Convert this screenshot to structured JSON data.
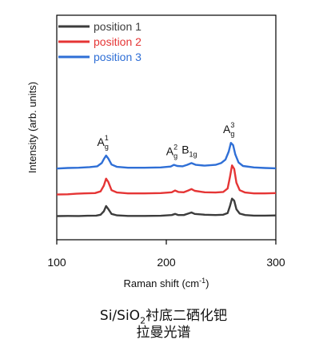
{
  "chart_data": {
    "type": "line",
    "xlabel": "Raman shift (cm",
    "xlabel_sup": "-1",
    "xlabel_tail": ")",
    "ylabel": "Intensity (arb. units)",
    "xlim": [
      100,
      300
    ],
    "xticks": [
      100,
      200,
      300
    ],
    "xticklabels": [
      "100",
      "200",
      "300"
    ],
    "yticks_shown": false,
    "grid": false,
    "legend_placement": "top-left",
    "series": [
      {
        "name": "position 1",
        "color": "#3c3c3c",
        "offset": 0,
        "points": [
          [
            100,
            0.15
          ],
          [
            110,
            0.2
          ],
          [
            120,
            0.18
          ],
          [
            128,
            0.25
          ],
          [
            136,
            0.3
          ],
          [
            140,
            0.6
          ],
          [
            143,
            1.8
          ],
          [
            145,
            3.6
          ],
          [
            147,
            2.6
          ],
          [
            150,
            0.9
          ],
          [
            155,
            0.4
          ],
          [
            165,
            0.2
          ],
          [
            180,
            0.2
          ],
          [
            195,
            0.25
          ],
          [
            205,
            0.5
          ],
          [
            208,
            0.9
          ],
          [
            211,
            0.5
          ],
          [
            216,
            0.5
          ],
          [
            220,
            1.0
          ],
          [
            223,
            1.4
          ],
          [
            226,
            0.9
          ],
          [
            235,
            0.6
          ],
          [
            245,
            0.5
          ],
          [
            252,
            0.6
          ],
          [
            256,
            1.2
          ],
          [
            258,
            3.5
          ],
          [
            260,
            6.2
          ],
          [
            262,
            5.5
          ],
          [
            264,
            2.5
          ],
          [
            267,
            1.0
          ],
          [
            272,
            0.5
          ],
          [
            280,
            0.3
          ],
          [
            290,
            0.3
          ],
          [
            300,
            0.35
          ]
        ]
      },
      {
        "name": "position 2",
        "color": "#e53535",
        "offset": 7.5,
        "points": [
          [
            100,
            0.1
          ],
          [
            110,
            0.2
          ],
          [
            118,
            0.4
          ],
          [
            125,
            0.5
          ],
          [
            135,
            0.6
          ],
          [
            140,
            1.2
          ],
          [
            143,
            3.2
          ],
          [
            145,
            5.6
          ],
          [
            147,
            4.5
          ],
          [
            150,
            1.6
          ],
          [
            155,
            0.8
          ],
          [
            165,
            0.5
          ],
          [
            180,
            0.5
          ],
          [
            195,
            0.6
          ],
          [
            205,
            0.9
          ],
          [
            208,
            1.5
          ],
          [
            211,
            1.0
          ],
          [
            216,
            0.9
          ],
          [
            220,
            1.5
          ],
          [
            223,
            2.0
          ],
          [
            226,
            1.4
          ],
          [
            235,
            0.9
          ],
          [
            245,
            0.8
          ],
          [
            252,
            1.0
          ],
          [
            256,
            2.2
          ],
          [
            258,
            6.0
          ],
          [
            260,
            10.2
          ],
          [
            262,
            9.0
          ],
          [
            264,
            4.2
          ],
          [
            267,
            1.6
          ],
          [
            272,
            0.8
          ],
          [
            280,
            0.5
          ],
          [
            290,
            0.5
          ],
          [
            300,
            0.6
          ]
        ]
      },
      {
        "name": "position 3",
        "color": "#2f6fd6",
        "offset": 16.5,
        "points": [
          [
            100,
            0.1
          ],
          [
            110,
            0.3
          ],
          [
            120,
            0.4
          ],
          [
            130,
            0.6
          ],
          [
            137,
            0.9
          ],
          [
            141,
            2.0
          ],
          [
            143,
            3.4
          ],
          [
            145,
            4.6
          ],
          [
            147,
            3.6
          ],
          [
            150,
            1.5
          ],
          [
            155,
            0.7
          ],
          [
            165,
            0.4
          ],
          [
            180,
            0.4
          ],
          [
            195,
            0.5
          ],
          [
            204,
            0.8
          ],
          [
            207,
            1.4
          ],
          [
            210,
            1.0
          ],
          [
            215,
            0.9
          ],
          [
            219,
            1.4
          ],
          [
            223,
            2.0
          ],
          [
            227,
            1.4
          ],
          [
            235,
            1.1
          ],
          [
            245,
            1.4
          ],
          [
            250,
            2.0
          ],
          [
            254,
            3.2
          ],
          [
            257,
            6.0
          ],
          [
            259,
            9.0
          ],
          [
            261,
            8.2
          ],
          [
            263,
            5.0
          ],
          [
            266,
            2.2
          ],
          [
            270,
            1.0
          ],
          [
            280,
            0.5
          ],
          [
            290,
            0.3
          ],
          [
            300,
            0.2
          ]
        ]
      }
    ],
    "peak_labels": [
      {
        "base": "A",
        "sub": "g",
        "sup": "1",
        "x": 145
      },
      {
        "base": "A",
        "sub": "g",
        "sup": "2",
        "x": 208
      },
      {
        "base": "B",
        "sub": "1g",
        "sup": "",
        "x": 224
      },
      {
        "base": "A",
        "sub": "g",
        "sup": "3",
        "x": 260
      }
    ]
  },
  "caption": {
    "line1_prefix": "Si/SiO",
    "line1_sub": "2",
    "line1_suffix": "衬底二硒化钯",
    "line2": "拉曼光谱"
  }
}
